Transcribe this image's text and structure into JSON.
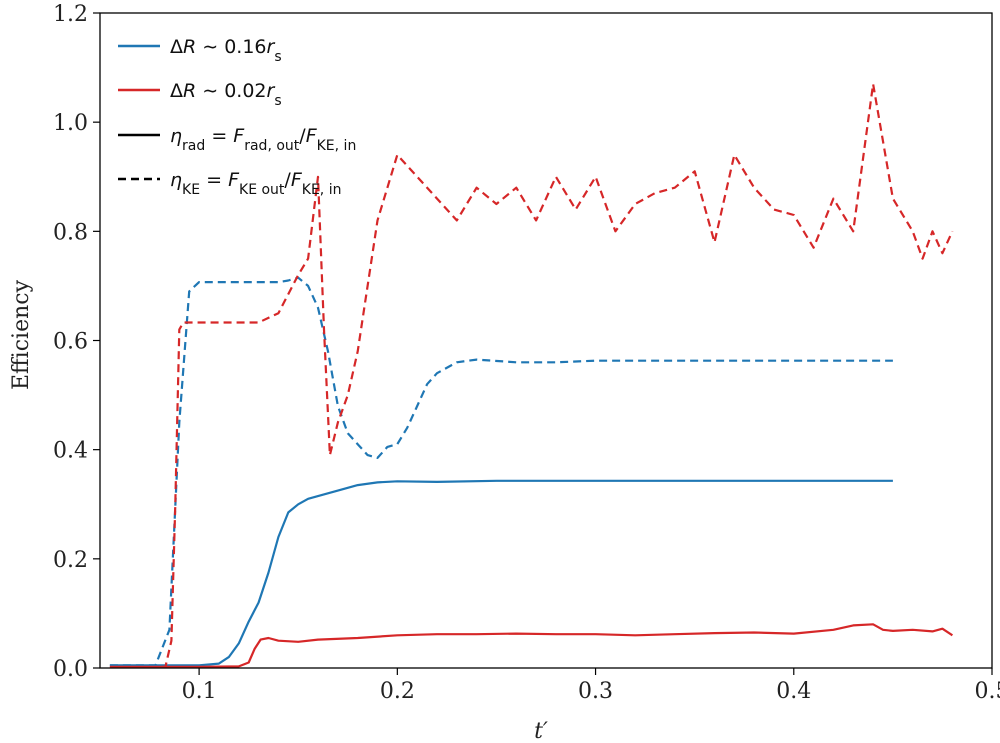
{
  "chart_data": {
    "type": "line",
    "ylabel": "Efficiency",
    "xlabel": "t′",
    "xlim": [
      0.05,
      0.5
    ],
    "ylim": [
      0.0,
      1.2
    ],
    "x_ticks": [
      0.1,
      0.2,
      0.3,
      0.4,
      0.5
    ],
    "y_ticks": [
      0.0,
      0.2,
      0.4,
      0.6,
      0.8,
      1.0,
      1.2
    ],
    "x_tick_labels": [
      "0.1",
      "0.2",
      "0.3",
      "0.4",
      "0.5"
    ],
    "y_tick_labels": [
      "0.0",
      "0.2",
      "0.4",
      "0.6",
      "0.8",
      "1.0",
      "1.2"
    ],
    "legend_position": "top-left",
    "legend": [
      {
        "label": "ΔR ∼ 0.16r_s",
        "color": "#1f77b4",
        "style": "solid"
      },
      {
        "label": "ΔR ∼ 0.02r_s",
        "color": "#d62728",
        "style": "solid"
      },
      {
        "label": "η_rad = F_rad,out/F_KE,in",
        "color": "#000000",
        "style": "solid"
      },
      {
        "label": "η_KE = F_KE out/F_KE,in",
        "color": "#000000",
        "style": "dashed"
      }
    ],
    "series": [
      {
        "color": "#1f77b4",
        "style": "solid",
        "x": [
          0.055,
          0.08,
          0.1,
          0.11,
          0.115,
          0.12,
          0.125,
          0.13,
          0.135,
          0.14,
          0.145,
          0.15,
          0.155,
          0.16,
          0.17,
          0.18,
          0.19,
          0.2,
          0.22,
          0.25,
          0.3,
          0.35,
          0.4,
          0.45
        ],
        "y": [
          0.005,
          0.005,
          0.005,
          0.008,
          0.02,
          0.045,
          0.085,
          0.12,
          0.175,
          0.24,
          0.285,
          0.3,
          0.31,
          0.315,
          0.325,
          0.335,
          0.34,
          0.342,
          0.341,
          0.343,
          0.343,
          0.343,
          0.343,
          0.343
        ]
      },
      {
        "color": "#d62728",
        "style": "solid",
        "x": [
          0.055,
          0.1,
          0.12,
          0.125,
          0.128,
          0.131,
          0.135,
          0.14,
          0.15,
          0.16,
          0.18,
          0.2,
          0.22,
          0.24,
          0.26,
          0.28,
          0.3,
          0.32,
          0.34,
          0.36,
          0.38,
          0.4,
          0.42,
          0.43,
          0.44,
          0.445,
          0.45,
          0.46,
          0.47,
          0.475,
          0.48
        ],
        "y": [
          0.002,
          0.002,
          0.003,
          0.01,
          0.035,
          0.052,
          0.055,
          0.05,
          0.048,
          0.052,
          0.055,
          0.06,
          0.062,
          0.062,
          0.063,
          0.062,
          0.062,
          0.06,
          0.062,
          0.064,
          0.065,
          0.063,
          0.07,
          0.078,
          0.08,
          0.07,
          0.068,
          0.07,
          0.067,
          0.072,
          0.06
        ]
      },
      {
        "color": "#1f77b4",
        "style": "dashed",
        "x": [
          0.055,
          0.078,
          0.085,
          0.09,
          0.095,
          0.1,
          0.11,
          0.12,
          0.13,
          0.14,
          0.145,
          0.15,
          0.155,
          0.16,
          0.165,
          0.17,
          0.175,
          0.18,
          0.185,
          0.19,
          0.195,
          0.2,
          0.205,
          0.21,
          0.215,
          0.22,
          0.23,
          0.24,
          0.26,
          0.28,
          0.3,
          0.35,
          0.4,
          0.45
        ],
        "y": [
          0.005,
          0.005,
          0.07,
          0.45,
          0.69,
          0.707,
          0.707,
          0.707,
          0.707,
          0.707,
          0.71,
          0.715,
          0.7,
          0.66,
          0.58,
          0.48,
          0.43,
          0.41,
          0.39,
          0.385,
          0.405,
          0.41,
          0.44,
          0.48,
          0.52,
          0.54,
          0.56,
          0.565,
          0.56,
          0.56,
          0.563,
          0.563,
          0.563,
          0.563
        ]
      },
      {
        "color": "#d62728",
        "style": "dashed",
        "x": [
          0.055,
          0.083,
          0.086,
          0.088,
          0.09,
          0.092,
          0.1,
          0.11,
          0.13,
          0.14,
          0.15,
          0.155,
          0.16,
          0.163,
          0.166,
          0.17,
          0.175,
          0.18,
          0.19,
          0.2,
          0.21,
          0.22,
          0.23,
          0.24,
          0.25,
          0.26,
          0.27,
          0.28,
          0.29,
          0.3,
          0.31,
          0.32,
          0.33,
          0.34,
          0.35,
          0.36,
          0.37,
          0.38,
          0.39,
          0.4,
          0.41,
          0.42,
          0.43,
          0.44,
          0.45,
          0.46,
          0.465,
          0.47,
          0.475,
          0.48
        ],
        "y": [
          0.002,
          0.002,
          0.05,
          0.3,
          0.62,
          0.633,
          0.633,
          0.633,
          0.633,
          0.65,
          0.72,
          0.75,
          0.9,
          0.62,
          0.39,
          0.45,
          0.5,
          0.58,
          0.82,
          0.94,
          0.9,
          0.86,
          0.82,
          0.88,
          0.85,
          0.88,
          0.82,
          0.9,
          0.84,
          0.9,
          0.8,
          0.85,
          0.87,
          0.88,
          0.91,
          0.78,
          0.94,
          0.88,
          0.84,
          0.83,
          0.77,
          0.86,
          0.8,
          1.07,
          0.86,
          0.8,
          0.75,
          0.8,
          0.76,
          0.8
        ]
      }
    ]
  }
}
